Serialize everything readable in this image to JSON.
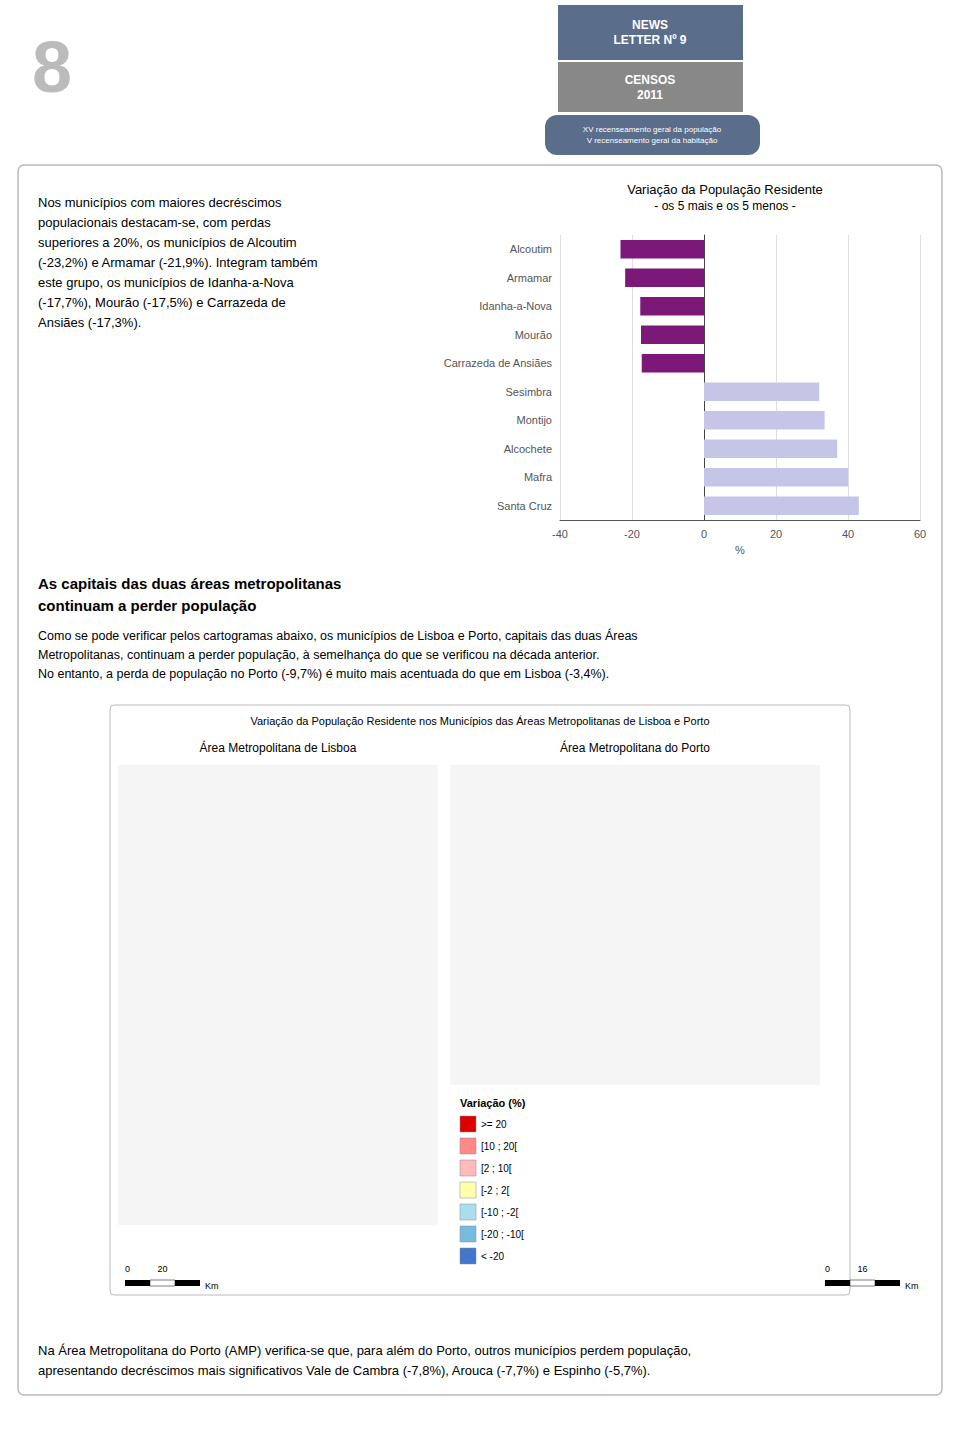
{
  "chart_data": {
    "type": "bar",
    "orientation": "horizontal",
    "title": "Variação da População Residente",
    "subtitle": "- os 5 mais e os 5 menos -",
    "xlabel": "%",
    "categories": [
      "Alcoutim",
      "Armamar",
      "Idanha-a-Nova",
      "Mourão",
      "Carrazeda de Ansiães",
      "Sesimbra",
      "Montijo",
      "Alcochete",
      "Mafra",
      "Santa Cruz"
    ],
    "values": [
      -23.2,
      -21.9,
      -17.7,
      -17.5,
      -17.3,
      32.0,
      33.5,
      37.0,
      40.0,
      43.0
    ],
    "colors": [
      "#7B1878",
      "#7B1878",
      "#7B1878",
      "#7B1878",
      "#7B1878",
      "#C5C5E8",
      "#C5C5E8",
      "#C5C5E8",
      "#C5C5E8",
      "#C5C5E8"
    ],
    "xlim": [
      -40,
      60
    ],
    "xticks": [
      -40,
      -20,
      0,
      20,
      40,
      60
    ],
    "grid": true,
    "annotations": [
      "8",
      "NEWS\nLETTER Nº 9",
      "CENSOS\n2011",
      "XV recenseamento geral da população\nV recenseamento geral da habitação",
      "Nos municípios com maiores decréscimos\npopulacionais destacam-se, com perdas\nsuperiores a 20%, os municípios de Alcoutim\n(-23,2%) e Armamar (-21,9%). Integram também\neste grupo, os municípios de Idanha-a-Nova\n(-17,7%), Mourão (-17,5%) e Carrazeda de\nAnsiães (-17,3%).",
      "As capitais das duas áreas metropolitanas\ncontinuam a perder população",
      "Como se pode verificar pelos cartogramas abaixo, os municípios de Lisboa e Porto, capitais das duas Áreas\nMetropolitanas, continuam a perder população, à semelhança do que se verificou na década anterior.\nNo entanto, a perda de população no Porto (-9,7%) é muito mais acentuada do que em Lisboa (-3,4%).",
      "Variação da População Residente nos Municípios das Áreas Metropolitanas de Lisboa e Porto",
      "Área Metropolitana de Lisboa",
      "Área Metropolitana do Porto",
      "0           20",
      "Km",
      "0           16",
      "Km",
      "Variação (%)",
      {
        "text": ">= 20",
        "color": "#DD0000"
      },
      {
        "text": "[10 ; 20[",
        "color": "#FF8888"
      },
      {
        "text": "[2 ; 10[",
        "color": "#FFBBBB"
      },
      {
        "text": "[-2 ; 2[",
        "color": "#FFFFAA"
      },
      {
        "text": "[-10 ; -2[",
        "color": "#AADDEE"
      },
      {
        "text": "[-20 ; -10[",
        "color": "#77BBDD"
      },
      {
        "text": "< -20",
        "color": "#4477CC"
      },
      "Na Área Metropolitana do Porto (AMP) verifica-se que, para além do Porto, outros municípios perdem população,\napresentando decréscimos mais significativos Vale de Cambra (-7,8%), Arouca (-7,7%) e Espinho (-5,7%)."
    ]
  }
}
